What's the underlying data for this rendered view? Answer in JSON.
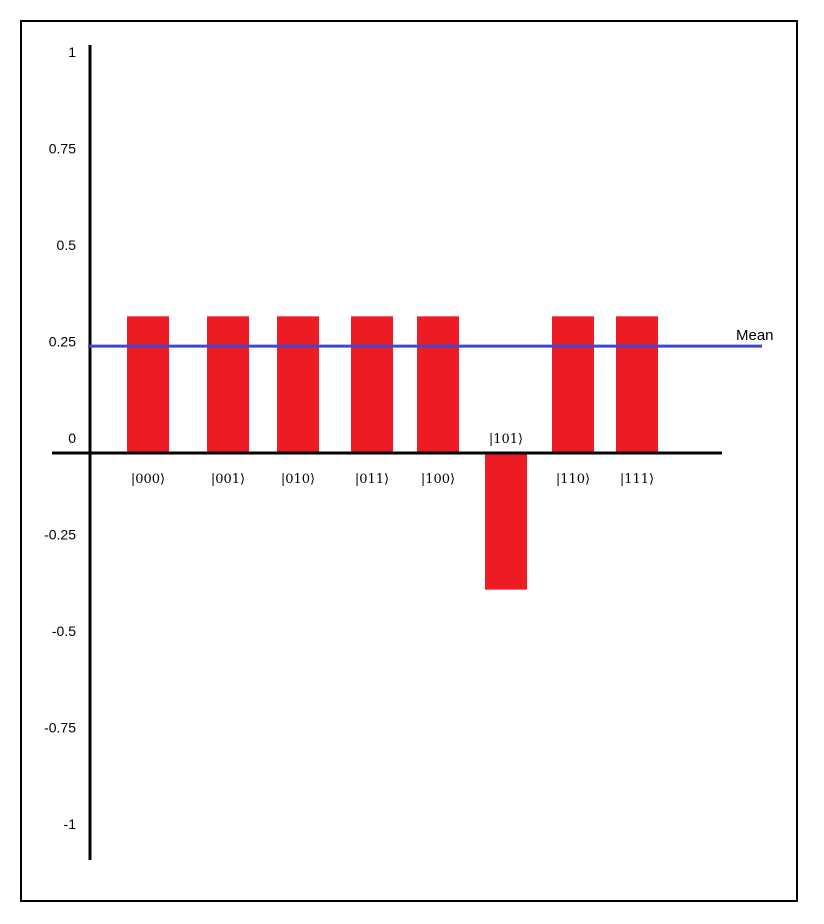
{
  "chart_data": {
    "type": "bar",
    "categories": [
      "|000⟩",
      "|001⟩",
      "|010⟩",
      "|011⟩",
      "|100⟩",
      "|101⟩",
      "|110⟩",
      "|111⟩"
    ],
    "values": [
      0.354,
      0.354,
      0.354,
      0.354,
      0.354,
      -0.354,
      0.354,
      0.354
    ],
    "mean": {
      "label": "Mean",
      "value": 0.277
    },
    "ylim": [
      -1,
      1
    ],
    "yticks": [
      {
        "value": 1,
        "label": "1"
      },
      {
        "value": 0.75,
        "label": "0.75"
      },
      {
        "value": 0.5,
        "label": "0.5"
      },
      {
        "value": 0.25,
        "label": "0.25"
      },
      {
        "value": 0,
        "label": "0"
      },
      {
        "value": -0.25,
        "label": "-0.25"
      },
      {
        "value": -0.5,
        "label": "-0.5"
      },
      {
        "value": -0.75,
        "label": "-0.75"
      },
      {
        "value": -1,
        "label": "-1"
      }
    ],
    "title": "",
    "xlabel": "",
    "ylabel": "",
    "grid": false,
    "colors": {
      "bar": "#ed1c24",
      "mean_line": "#3f48cc",
      "axis": "#000000"
    }
  }
}
